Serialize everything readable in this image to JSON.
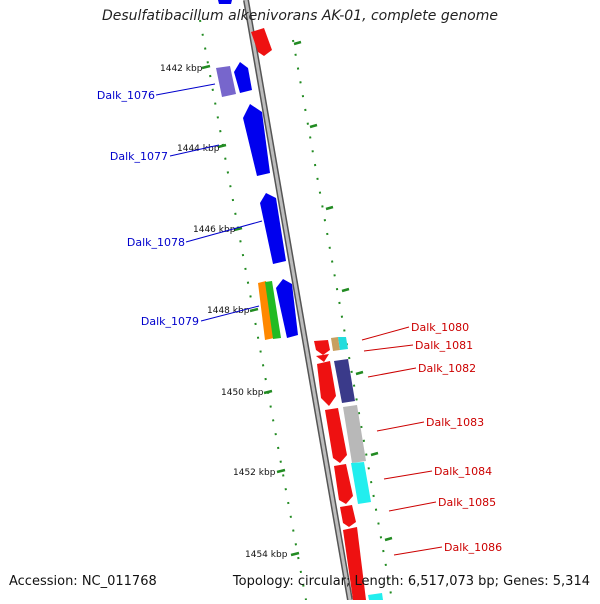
{
  "title": "Desulfatibacillum alkenivorans AK-01, complete genome",
  "footer": {
    "accession": "Accession: NC_011768",
    "summary": "Topology: circular; Length: 6,517,073 bp; Genes: 5,314"
  },
  "colors": {
    "backbone": "#888888",
    "ticks": "#228b22",
    "left_labels": "#0000cc",
    "right_labels": "#cc0000"
  },
  "kbp_labels": [
    "1442 kbp",
    "1444 kbp",
    "1446 kbp",
    "1448 kbp",
    "1450 kbp",
    "1452 kbp",
    "1454 kbp"
  ],
  "left_genes": [
    "Dalk_1076",
    "Dalk_1077",
    "Dalk_1078",
    "Dalk_1079"
  ],
  "right_genes": [
    "Dalk_1080",
    "Dalk_1081",
    "Dalk_1082",
    "Dalk_1083",
    "Dalk_1084",
    "Dalk_1085",
    "Dalk_1086"
  ]
}
